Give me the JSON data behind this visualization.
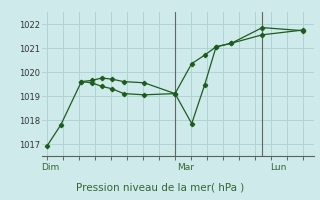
{
  "background_color": "#ceeaea",
  "grid_color": "#b0d4d4",
  "line_color": "#1e5c1e",
  "title": "Pression niveau de la mer( hPa )",
  "ylim": [
    1016.5,
    1022.5
  ],
  "yticks": [
    1017,
    1018,
    1019,
    1020,
    1021,
    1022
  ],
  "day_labels": [
    "Dim",
    "Mar",
    "Lun"
  ],
  "day_positions": [
    0.0,
    0.5,
    0.84
  ],
  "vline_positions": [
    0.5,
    0.84
  ],
  "line1_x": [
    0.0,
    0.055,
    0.135,
    0.175,
    0.215,
    0.255,
    0.3,
    0.38,
    0.5,
    0.565,
    0.615,
    0.66,
    0.72,
    0.84,
    1.0
  ],
  "line1_y": [
    1016.9,
    1017.8,
    1019.6,
    1019.65,
    1019.75,
    1019.7,
    1019.6,
    1019.55,
    1019.1,
    1020.35,
    1020.7,
    1021.05,
    1021.2,
    1021.85,
    1021.72
  ],
  "line2_x": [
    0.135,
    0.175,
    0.215,
    0.255,
    0.3,
    0.38,
    0.5,
    0.565,
    0.615,
    0.66,
    0.72,
    0.84,
    1.0
  ],
  "line2_y": [
    1019.6,
    1019.55,
    1019.4,
    1019.3,
    1019.1,
    1019.05,
    1019.1,
    1017.85,
    1019.45,
    1021.05,
    1021.2,
    1021.55,
    1021.75
  ],
  "xlim": [
    -0.02,
    1.04
  ]
}
